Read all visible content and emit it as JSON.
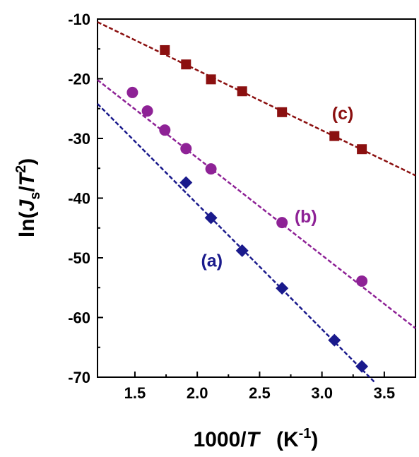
{
  "chart_data": {
    "type": "scatter",
    "xlabel": {
      "prefix": "1000/",
      "var": "T",
      "unit_open": "(K",
      "unit_sup": "-1",
      "unit_close": ")"
    },
    "ylabel": {
      "prefix": "ln(",
      "var": "J",
      "sub": "s",
      "slash": "/",
      "var2": "T",
      "sup": "2",
      "close": ")"
    },
    "xlim": [
      1.2,
      3.75
    ],
    "ylim": [
      -70,
      -10
    ],
    "xticks": [
      1.5,
      2.0,
      2.5,
      3.0,
      3.5
    ],
    "xtick_labels": [
      "1.5",
      "2.0",
      "2.5",
      "3.0",
      "3.5"
    ],
    "yticks": [
      -70,
      -60,
      -50,
      -40,
      -30,
      -20,
      -10
    ],
    "ytick_labels": [
      "-70",
      "-60",
      "-50",
      "-40",
      "-30",
      "-20",
      "-10"
    ],
    "grid": false,
    "series": [
      {
        "name": "(c)",
        "color": "#8b1010",
        "marker": "square",
        "x": [
          1.74,
          1.91,
          2.11,
          2.36,
          2.68,
          3.1,
          3.32
        ],
        "y": [
          -15.2,
          -17.6,
          -20.1,
          -22.1,
          -25.6,
          -29.6,
          -31.8
        ],
        "fit": {
          "x": [
            1.2,
            3.75
          ],
          "y": [
            -10.5,
            -36.2
          ]
        },
        "label_pos": {
          "x": 3.08,
          "y": -26.8
        }
      },
      {
        "name": "(b)",
        "color": "#8e2296",
        "marker": "circle",
        "x": [
          1.48,
          1.6,
          1.74,
          1.91,
          2.11,
          2.68,
          3.32
        ],
        "y": [
          -22.3,
          -25.4,
          -28.6,
          -31.7,
          -35.1,
          -44.1,
          -53.9
        ],
        "fit": {
          "x": [
            1.2,
            3.75
          ],
          "y": [
            -20.2,
            -61.8
          ]
        },
        "label_pos": {
          "x": 2.78,
          "y": -44.1
        }
      },
      {
        "name": "(a)",
        "color": "#1a1a8c",
        "marker": "diamond",
        "x": [
          1.91,
          2.11,
          2.36,
          2.68,
          3.1,
          3.32
        ],
        "y": [
          -37.4,
          -43.3,
          -48.8,
          -55.1,
          -63.8,
          -68.2
        ],
        "fit": {
          "x": [
            1.2,
            3.43
          ],
          "y": [
            -24.2,
            -71.0
          ]
        },
        "label_pos": {
          "x": 2.03,
          "y": -51.5
        }
      }
    ]
  }
}
